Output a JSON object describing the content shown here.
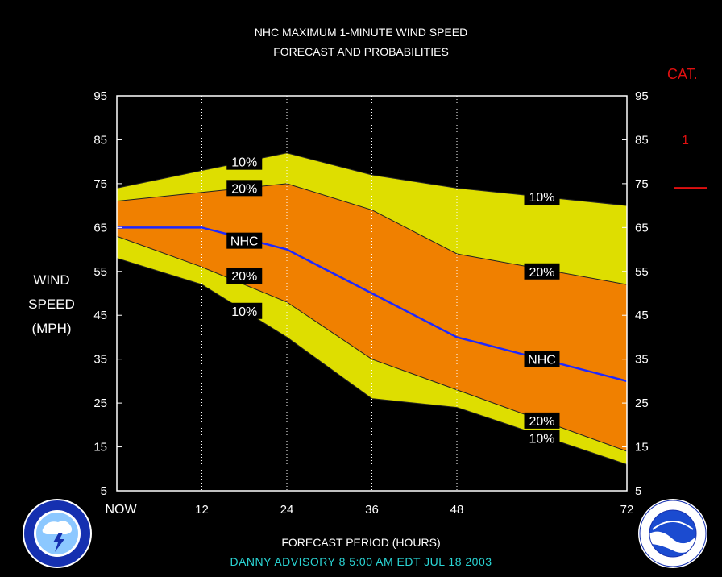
{
  "title": "NHC MAXIMUM 1-MINUTE WIND SPEED",
  "subtitle": "FORECAST AND PROBABILITIES",
  "category_header": "CAT.",
  "category_label": "1",
  "ylabel_lines": [
    "WIND",
    "SPEED",
    "(MPH)"
  ],
  "xlabel": "FORECAST PERIOD (HOURS)",
  "advisory": "DANNY   ADVISORY  8 5:00  AM  EDT JUL 18 2003",
  "colors": {
    "outer_band": "#dede00",
    "inner_band": "#f08000",
    "nhc_line": "#1e28ff",
    "category_marker": "#e01010"
  },
  "chart_data": {
    "type": "area",
    "x": [
      0,
      12,
      24,
      36,
      48,
      72
    ],
    "x_tick_labels": [
      "NOW",
      "12",
      "24",
      "36",
      "48",
      "72"
    ],
    "xlim": [
      0,
      72
    ],
    "ylim": [
      5,
      95
    ],
    "y_ticks": [
      5,
      15,
      25,
      35,
      45,
      55,
      65,
      75,
      85,
      95
    ],
    "x_grid": "dotted",
    "series": [
      {
        "name": "NHC",
        "values": [
          65,
          65,
          60,
          50,
          40,
          30
        ]
      }
    ],
    "bands": {
      "upper_10": [
        74,
        78,
        82,
        77,
        74,
        70
      ],
      "upper_20": [
        71,
        73,
        75,
        69,
        59,
        52
      ],
      "lower_20": [
        63,
        56,
        48,
        35,
        28,
        14
      ],
      "lower_10": [
        58,
        52,
        40,
        26,
        24,
        11
      ]
    },
    "annotations": [
      {
        "text": "10%",
        "x": 18,
        "y": 80
      },
      {
        "text": "20%",
        "x": 18,
        "y": 74
      },
      {
        "text": "NHC",
        "x": 18,
        "y": 62
      },
      {
        "text": "20%",
        "x": 18,
        "y": 54
      },
      {
        "text": "10%",
        "x": 18,
        "y": 46
      },
      {
        "text": "10%",
        "x": 60,
        "y": 72
      },
      {
        "text": "20%",
        "x": 60,
        "y": 55
      },
      {
        "text": "NHC",
        "x": 60,
        "y": 35
      },
      {
        "text": "20%",
        "x": 60,
        "y": 21
      },
      {
        "text": "10%",
        "x": 60,
        "y": 17
      }
    ],
    "category_threshold": 74
  }
}
